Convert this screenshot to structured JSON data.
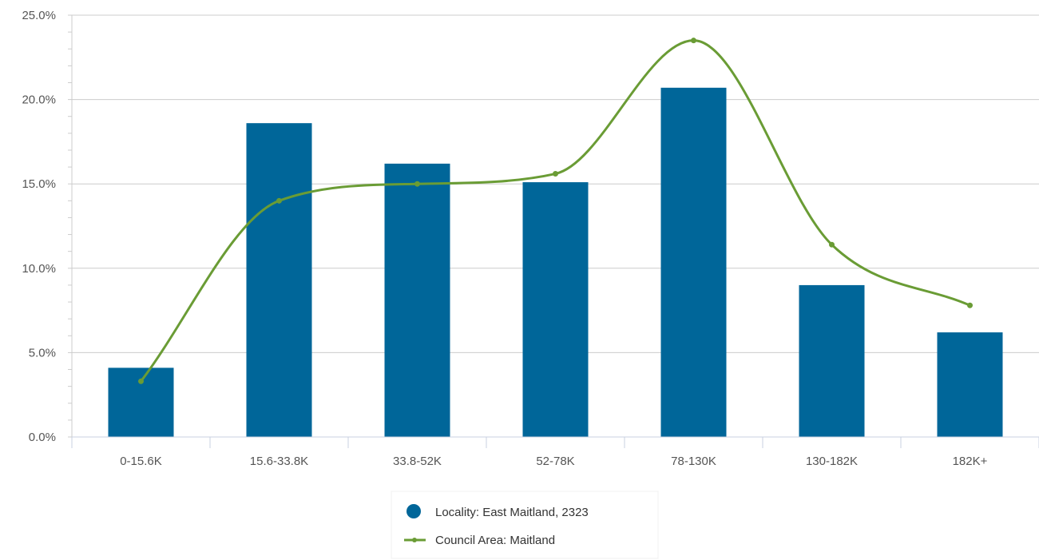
{
  "colors": {
    "bar": "#006699",
    "line": "#6a9c35",
    "grid": "#cccccc",
    "axis": "#c8d0e0"
  },
  "chart_data": {
    "type": "bar",
    "categories": [
      "0-15.6K",
      "15.6-33.8K",
      "33.8-52K",
      "52-78K",
      "78-130K",
      "130-182K",
      "182K+"
    ],
    "series": [
      {
        "name": "Locality: East Maitland, 2323",
        "type": "bar",
        "values": [
          4.1,
          18.6,
          16.2,
          15.1,
          20.7,
          9.0,
          6.2
        ]
      },
      {
        "name": "Council Area: Maitland",
        "type": "line",
        "smooth": true,
        "values": [
          3.3,
          14.0,
          15.0,
          15.6,
          23.5,
          11.4,
          7.8
        ]
      }
    ],
    "y_ticks": [
      "0.0%",
      "5.0%",
      "10.0%",
      "15.0%",
      "20.0%",
      "25.0%"
    ],
    "ylim": [
      0,
      25
    ],
    "grid": true,
    "legend_position": "bottom-center"
  }
}
